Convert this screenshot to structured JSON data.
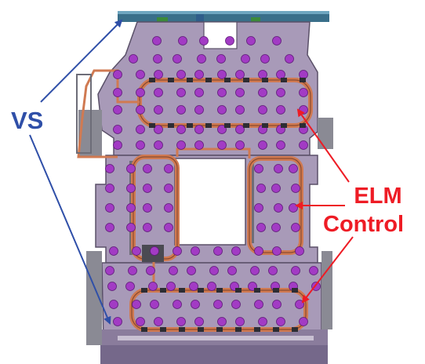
{
  "labels": {
    "vs": "VS",
    "elm_line1": "ELM",
    "elm_line2": "Control"
  },
  "colors": {
    "vs_label": "#2f4fa8",
    "elm_label": "#ee1c25",
    "panel": "#a89ab8",
    "panel_dark": "#8a7c9c",
    "bolt": "#a23bc4",
    "coil": "#d07a52",
    "structure": "#6d6d78"
  }
}
